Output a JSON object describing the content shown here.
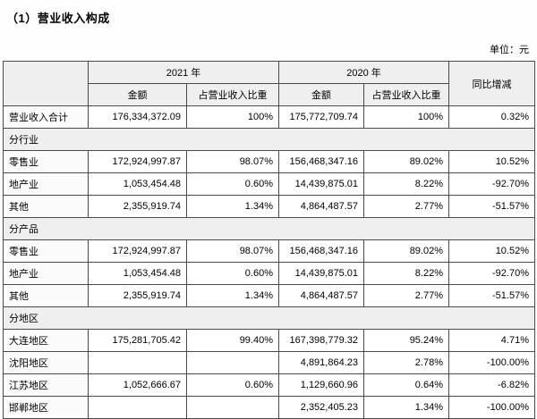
{
  "page": {
    "title": "（1）营业收入构成",
    "unit_label": "单位：元"
  },
  "colors": {
    "header_bg": "#efefef",
    "section_bg": "#efefef",
    "border": "#4a4a4a",
    "page_bg": "#fefefe"
  },
  "table": {
    "header": {
      "year_2021": "2021 年",
      "year_2020": "2020 年",
      "yoy": "同比增减",
      "amount": "金额",
      "ratio": "占营业收入比重"
    },
    "rows": [
      {
        "type": "data",
        "label": "营业收入合计",
        "a2021": "176,334,372.09",
        "r2021": "100%",
        "a2020": "175,772,709.74",
        "r2020": "100%",
        "yoy": "0.32%"
      },
      {
        "type": "section",
        "label": "分行业"
      },
      {
        "type": "data",
        "label": "零售业",
        "a2021": "172,924,997.87",
        "r2021": "98.07%",
        "a2020": "156,468,347.16",
        "r2020": "89.02%",
        "yoy": "10.52%"
      },
      {
        "type": "data",
        "label": "地产业",
        "a2021": "1,053,454.48",
        "r2021": "0.60%",
        "a2020": "14,439,875.01",
        "r2020": "8.22%",
        "yoy": "-92.70%"
      },
      {
        "type": "data",
        "label": "其他",
        "a2021": "2,355,919.74",
        "r2021": "1.34%",
        "a2020": "4,864,487.57",
        "r2020": "2.77%",
        "yoy": "-51.57%"
      },
      {
        "type": "section",
        "label": "分产品"
      },
      {
        "type": "data",
        "label": "零售业",
        "a2021": "172,924,997.87",
        "r2021": "98.07%",
        "a2020": "156,468,347.16",
        "r2020": "89.02%",
        "yoy": "10.52%"
      },
      {
        "type": "data",
        "label": "地产业",
        "a2021": "1,053,454.48",
        "r2021": "0.60%",
        "a2020": "14,439,875.01",
        "r2020": "8.22%",
        "yoy": "-92.70%"
      },
      {
        "type": "data",
        "label": "其他",
        "a2021": "2,355,919.74",
        "r2021": "1.34%",
        "a2020": "4,864,487.57",
        "r2020": "2.77%",
        "yoy": "-51.57%"
      },
      {
        "type": "section",
        "label": "分地区"
      },
      {
        "type": "data",
        "label": "大连地区",
        "a2021": "175,281,705.42",
        "r2021": "99.40%",
        "a2020": "167,398,779.32",
        "r2020": "95.24%",
        "yoy": "4.71%"
      },
      {
        "type": "data",
        "label": "沈阳地区",
        "a2021": "",
        "r2021": "",
        "a2020": "4,891,864.23",
        "r2020": "2.78%",
        "yoy": "-100.00%"
      },
      {
        "type": "data",
        "label": "江苏地区",
        "a2021": "1,052,666.67",
        "r2021": "0.60%",
        "a2020": "1,129,660.96",
        "r2020": "0.64%",
        "yoy": "-6.82%"
      },
      {
        "type": "data",
        "label": "邯郸地区",
        "a2021": "",
        "r2021": "",
        "a2020": "2,352,405.23",
        "r2020": "1.34%",
        "yoy": "-100.00%"
      }
    ]
  }
}
